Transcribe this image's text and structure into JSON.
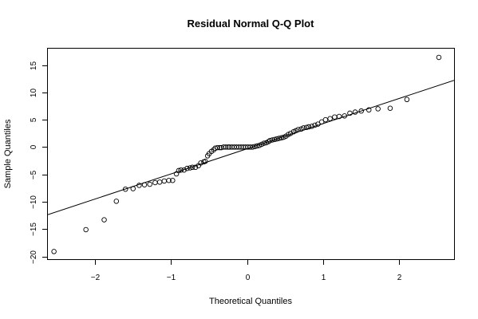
{
  "chart_data": {
    "type": "scatter",
    "title": "Residual Normal Q-Q Plot",
    "xlabel": "Theoretical Quantiles",
    "ylabel": "Sample Quantiles",
    "xlim": [
      -2.62,
      2.72
    ],
    "ylim": [
      -20.5,
      18.0
    ],
    "xticks": [
      -2,
      -1,
      0,
      1,
      2
    ],
    "xtick_labels": [
      "−2",
      "−1",
      "0",
      "1",
      "2"
    ],
    "yticks": [
      -20,
      -15,
      -10,
      -5,
      0,
      5,
      10,
      15
    ],
    "ytick_labels": [
      "−20",
      "−15",
      "−10",
      "−5",
      "0",
      "5",
      "10",
      "15"
    ],
    "grid": false,
    "legend": "none",
    "reference_line": {
      "slope": 4.6,
      "intercept": -0.3
    },
    "points": {
      "x": [
        -2.54,
        -2.12,
        -1.88,
        -1.72,
        -1.6,
        -1.5,
        -1.42,
        -1.35,
        -1.28,
        -1.21,
        -1.15,
        -1.09,
        -1.03,
        -0.98,
        -0.93,
        -0.9,
        -0.87,
        -0.83,
        -0.79,
        -0.75,
        -0.72,
        -0.68,
        -0.64,
        -0.61,
        -0.57,
        -0.55,
        -0.52,
        -0.5,
        -0.47,
        -0.44,
        -0.42,
        -0.39,
        -0.36,
        -0.34,
        -0.31,
        -0.28,
        -0.25,
        -0.23,
        -0.2,
        -0.17,
        -0.14,
        -0.11,
        -0.08,
        -0.05,
        -0.02,
        0.01,
        0.04,
        0.07,
        0.1,
        0.13,
        0.16,
        0.19,
        0.22,
        0.25,
        0.28,
        0.3,
        0.33,
        0.36,
        0.39,
        0.42,
        0.45,
        0.48,
        0.51,
        0.54,
        0.57,
        0.61,
        0.64,
        0.67,
        0.71,
        0.74,
        0.78,
        0.81,
        0.85,
        0.89,
        0.93,
        0.98,
        1.03,
        1.09,
        1.15,
        1.21,
        1.28,
        1.35,
        1.42,
        1.5,
        1.6,
        1.72,
        1.88,
        2.1,
        2.52
      ],
      "y": [
        -19.1,
        -15.1,
        -13.3,
        -9.9,
        -7.7,
        -7.6,
        -7.0,
        -6.9,
        -6.8,
        -6.5,
        -6.4,
        -6.2,
        -6.1,
        -6.1,
        -4.9,
        -4.3,
        -4.2,
        -4.2,
        -3.9,
        -3.8,
        -3.7,
        -3.7,
        -3.4,
        -2.9,
        -2.7,
        -2.6,
        -1.6,
        -1.2,
        -0.8,
        -0.5,
        -0.2,
        -0.1,
        -0.1,
        -0.1,
        0.0,
        0.0,
        0.0,
        0.0,
        0.0,
        0.0,
        0.0,
        0.0,
        0.0,
        0.0,
        0.0,
        0.0,
        0.0,
        0.0,
        0.1,
        0.2,
        0.3,
        0.5,
        0.7,
        0.8,
        1.0,
        1.2,
        1.3,
        1.4,
        1.5,
        1.6,
        1.7,
        1.8,
        2.0,
        2.3,
        2.5,
        2.8,
        3.0,
        3.2,
        3.3,
        3.5,
        3.6,
        3.7,
        3.8,
        4.0,
        4.2,
        4.6,
        5.0,
        5.2,
        5.5,
        5.6,
        5.7,
        6.2,
        6.4,
        6.6,
        6.8,
        7.0,
        7.1,
        8.7,
        16.4
      ]
    }
  }
}
